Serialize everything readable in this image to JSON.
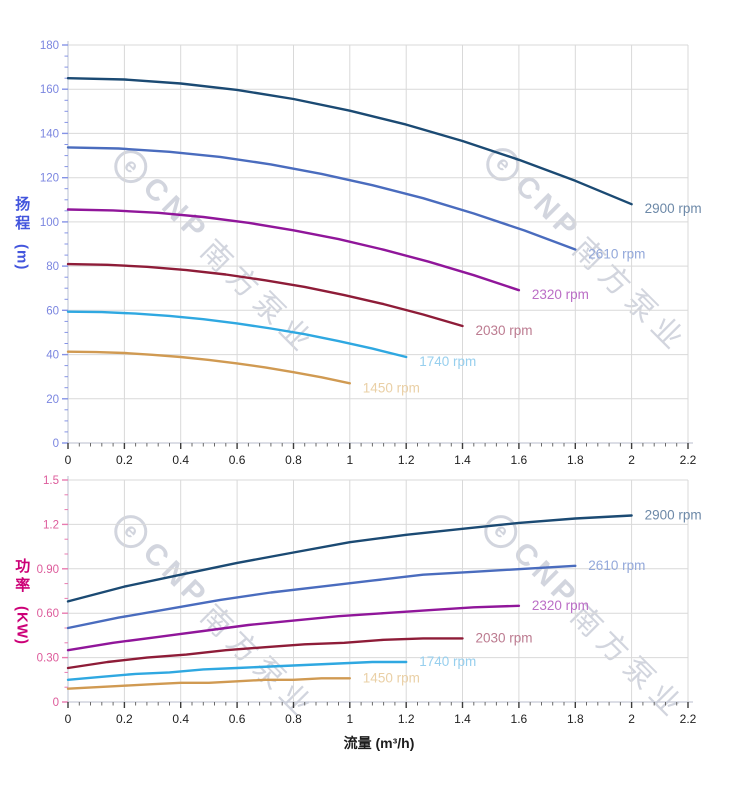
{
  "watermark": {
    "symbol": "e",
    "brand": "CNP",
    "company": "南方泵业"
  },
  "chart_data": [
    {
      "type": "line",
      "title": "",
      "xlabel": "",
      "ylabel": "扬程 (m)",
      "ylabel_cn": "扬程",
      "ylabel_unit": "(m)",
      "xlim": [
        0,
        2.2
      ],
      "ylim": [
        0,
        180
      ],
      "grid": true,
      "legend_position": "line-end",
      "x_tick_values": [
        0,
        0.2,
        0.4,
        0.6,
        0.8,
        1,
        1.2,
        1.4,
        1.6,
        1.8,
        2,
        2.2
      ],
      "x_tick_labels": [
        "0",
        "0.2",
        "0.4",
        "0.6",
        "0.8",
        "1",
        "1.2",
        "1.4",
        "1.6",
        "1.8",
        "2",
        "2.2"
      ],
      "x_minor_step": 0.04,
      "y_tick_values": [
        0,
        20,
        40,
        60,
        80,
        100,
        120,
        140,
        160,
        180
      ],
      "y_tick_labels": [
        "0",
        "20",
        "40",
        "60",
        "80",
        "100",
        "120",
        "140",
        "160",
        "180"
      ],
      "y_minor_step": 5,
      "colors": {
        "axis_line": "#c6cbd8",
        "grid": "#d9d9d9",
        "x_tick": "#3c3c3c",
        "x_tick_label": "#1f1f1f",
        "y_tick": "#8593e6",
        "y_tick_label": "#7b86e0",
        "y_axis_title": "#4355dd"
      },
      "series": [
        {
          "name": "2900 rpm",
          "rpm": 2900,
          "color": "#1b4a73",
          "label_color": "#6d89a8",
          "x": [
            0,
            0.2,
            0.4,
            0.6,
            0.8,
            1,
            1.2,
            1.4,
            1.6,
            1.8,
            2
          ],
          "y": [
            165,
            164.4,
            162.6,
            159.7,
            155.6,
            150.3,
            144,
            136.6,
            128.1,
            118.6,
            108
          ]
        },
        {
          "name": "2610 rpm",
          "rpm": 2610,
          "color": "#4a6cbe",
          "label_color": "#93a8da",
          "x": [
            0,
            0.18,
            0.36,
            0.54,
            0.72,
            0.9,
            1.08,
            1.26,
            1.44,
            1.62,
            1.8
          ],
          "y": [
            133.7,
            133.2,
            131.7,
            129.4,
            126,
            121.7,
            116.6,
            110.7,
            103.8,
            96.1,
            87.5
          ]
        },
        {
          "name": "2320 rpm",
          "rpm": 2320,
          "color": "#90169a",
          "label_color": "#bb6ec6",
          "x": [
            0,
            0.16,
            0.32,
            0.48,
            0.64,
            0.8,
            0.96,
            1.12,
            1.28,
            1.44,
            1.6
          ],
          "y": [
            105.6,
            105.2,
            104.1,
            102.2,
            99.6,
            96.2,
            92.2,
            87.4,
            82,
            75.9,
            69.1
          ]
        },
        {
          "name": "2030 rpm",
          "rpm": 2030,
          "color": "#8e1c38",
          "label_color": "#bc7b90",
          "x": [
            0,
            0.14,
            0.28,
            0.42,
            0.56,
            0.7,
            0.84,
            0.98,
            1.12,
            1.26,
            1.4
          ],
          "y": [
            80.9,
            80.6,
            79.7,
            78.2,
            76.2,
            73.6,
            70.6,
            66.9,
            62.8,
            58.1,
            52.9
          ]
        },
        {
          "name": "1740 rpm",
          "rpm": 1740,
          "color": "#2fa8e1",
          "label_color": "#97cfee",
          "x": [
            0,
            0.12,
            0.24,
            0.36,
            0.48,
            0.6,
            0.72,
            0.84,
            0.96,
            1.08,
            1.2
          ],
          "y": [
            59.4,
            59.2,
            58.5,
            57.5,
            56,
            54.1,
            51.8,
            49.2,
            46.1,
            42.7,
            38.9
          ]
        },
        {
          "name": "1450 rpm",
          "rpm": 1450,
          "color": "#d09a52",
          "label_color": "#ead0a6",
          "x": [
            0,
            0.1,
            0.2,
            0.3,
            0.4,
            0.5,
            0.6,
            0.7,
            0.8,
            0.9,
            1
          ],
          "y": [
            41.3,
            41.1,
            40.7,
            39.9,
            38.9,
            37.6,
            36,
            34.2,
            32,
            29.7,
            27
          ]
        }
      ]
    },
    {
      "type": "line",
      "title": "",
      "xlabel": "流量 (m³/h)",
      "ylabel": "功率 (KW)",
      "ylabel_cn": "功率",
      "ylabel_unit": "(KW)",
      "xlim": [
        0,
        2.2
      ],
      "ylim": [
        0,
        1.5
      ],
      "grid": true,
      "legend_position": "line-end",
      "x_tick_values": [
        0,
        0.2,
        0.4,
        0.6,
        0.8,
        1,
        1.2,
        1.4,
        1.6,
        1.8,
        2,
        2.2
      ],
      "x_tick_labels": [
        "0",
        "0.2",
        "0.4",
        "0.6",
        "0.8",
        "1",
        "1.2",
        "1.4",
        "1.6",
        "1.8",
        "2",
        "2.2"
      ],
      "x_minor_step": 0.04,
      "y_tick_values": [
        0,
        0.3,
        0.6,
        0.9,
        1.2,
        1.5
      ],
      "y_tick_labels": [
        "0",
        "0.30",
        "0.60",
        "0.90",
        "1.2",
        "1.5"
      ],
      "y_minor_step": 0.1,
      "colors": {
        "axis_line": "#c6cbd8",
        "grid": "#d9d9d9",
        "x_tick": "#3c3c3c",
        "x_tick_label": "#1f1f1f",
        "y_tick": "#e87bb0",
        "y_tick_label": "#dd5b9b",
        "y_axis_title": "#cc0077"
      },
      "series": [
        {
          "name": "2900 rpm",
          "rpm": 2900,
          "color": "#1b4a73",
          "label_color": "#6d89a8",
          "x": [
            0,
            0.2,
            0.4,
            0.6,
            0.8,
            1,
            1.2,
            1.4,
            1.6,
            1.8,
            2
          ],
          "y": [
            0.68,
            0.78,
            0.86,
            0.94,
            1.01,
            1.08,
            1.13,
            1.17,
            1.21,
            1.24,
            1.26
          ]
        },
        {
          "name": "2610 rpm",
          "rpm": 2610,
          "color": "#4a6cbe",
          "label_color": "#93a8da",
          "x": [
            0,
            0.18,
            0.36,
            0.54,
            0.72,
            0.9,
            1.08,
            1.26,
            1.44,
            1.62,
            1.8
          ],
          "y": [
            0.5,
            0.57,
            0.63,
            0.69,
            0.74,
            0.78,
            0.82,
            0.86,
            0.88,
            0.9,
            0.92
          ]
        },
        {
          "name": "2320 rpm",
          "rpm": 2320,
          "color": "#90169a",
          "label_color": "#bb6ec6",
          "x": [
            0,
            0.16,
            0.32,
            0.48,
            0.64,
            0.8,
            0.96,
            1.12,
            1.28,
            1.44,
            1.6
          ],
          "y": [
            0.35,
            0.4,
            0.44,
            0.48,
            0.52,
            0.55,
            0.58,
            0.6,
            0.62,
            0.64,
            0.65
          ]
        },
        {
          "name": "2030 rpm",
          "rpm": 2030,
          "color": "#8e1c38",
          "label_color": "#bc7b90",
          "x": [
            0,
            0.14,
            0.28,
            0.42,
            0.56,
            0.7,
            0.84,
            0.98,
            1.12,
            1.26,
            1.4
          ],
          "y": [
            0.23,
            0.27,
            0.3,
            0.32,
            0.35,
            0.37,
            0.39,
            0.4,
            0.42,
            0.43,
            0.43
          ]
        },
        {
          "name": "1740 rpm",
          "rpm": 1740,
          "color": "#2fa8e1",
          "label_color": "#97cfee",
          "x": [
            0,
            0.12,
            0.24,
            0.36,
            0.48,
            0.6,
            0.72,
            0.84,
            0.96,
            1.08,
            1.2
          ],
          "y": [
            0.15,
            0.17,
            0.19,
            0.2,
            0.22,
            0.23,
            0.24,
            0.25,
            0.26,
            0.27,
            0.27
          ]
        },
        {
          "name": "1450 rpm",
          "rpm": 1450,
          "color": "#d09a52",
          "label_color": "#ead0a6",
          "x": [
            0,
            0.1,
            0.2,
            0.3,
            0.4,
            0.5,
            0.6,
            0.7,
            0.8,
            0.9,
            1
          ],
          "y": [
            0.09,
            0.1,
            0.11,
            0.12,
            0.13,
            0.13,
            0.14,
            0.15,
            0.15,
            0.16,
            0.16
          ]
        }
      ]
    }
  ]
}
